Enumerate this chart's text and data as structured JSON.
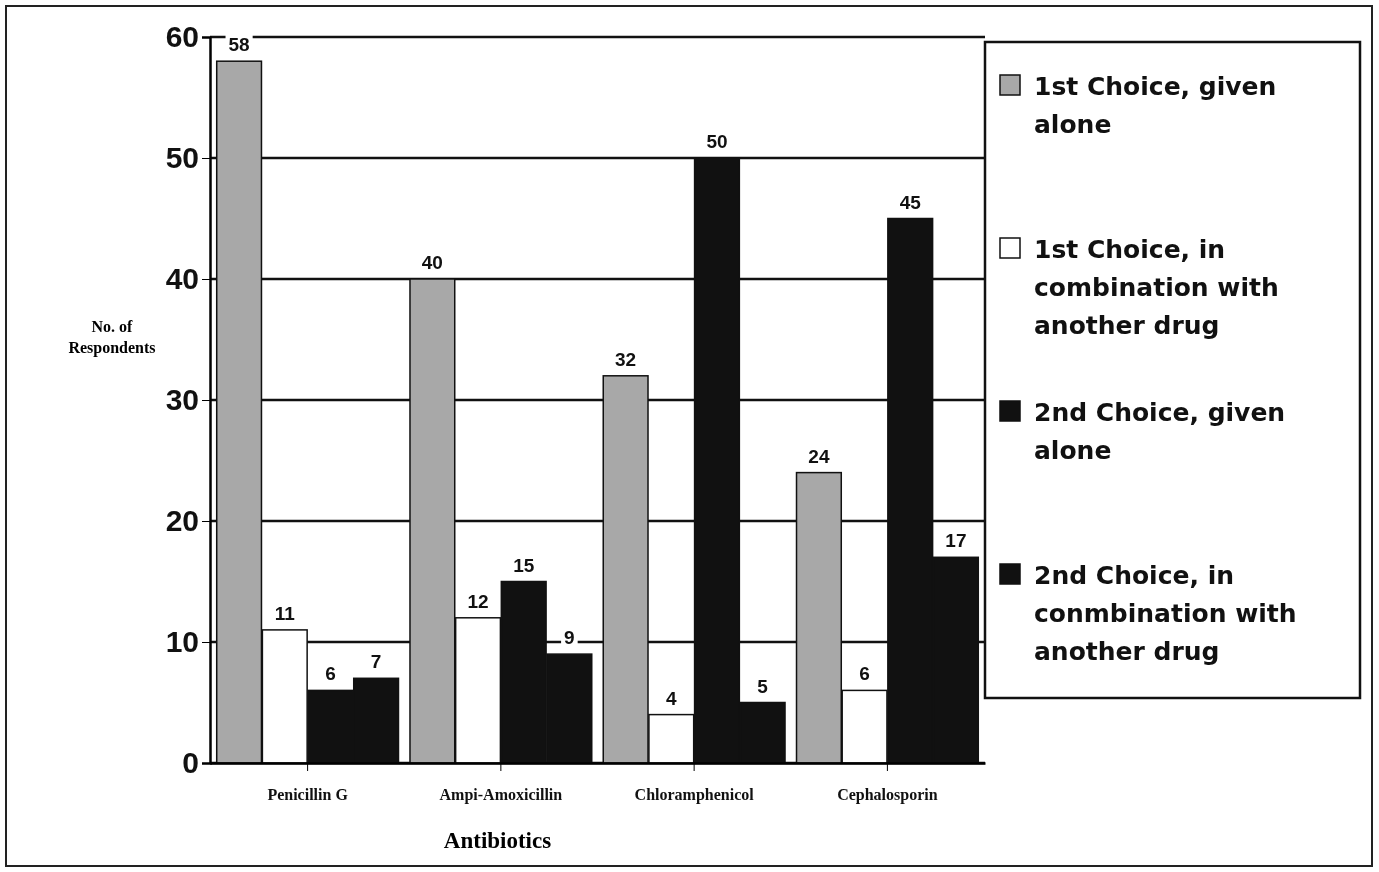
{
  "chart_data": {
    "type": "bar",
    "xlabel": "Antibiotics",
    "ylabel": "No. of Respondents",
    "categories": [
      "Penicillin G",
      "Ampi-Amoxicillin",
      "Chloramphenicol",
      "Cephalosporin"
    ],
    "series": [
      {
        "name": "1st Choice, given alone",
        "color": "#a8a8a8",
        "values": [
          58,
          40,
          32,
          24
        ]
      },
      {
        "name": "1st Choice, in combination with another drug",
        "color": "#ffffff",
        "values": [
          11,
          12,
          4,
          6
        ]
      },
      {
        "name": "2nd Choice, given alone",
        "color": "#111111",
        "values": [
          6,
          15,
          50,
          45
        ]
      },
      {
        "name": "2nd Choice, in conmbination with another drug",
        "color": "#111111",
        "values": [
          7,
          9,
          5,
          17
        ]
      }
    ],
    "ylim": [
      0,
      60
    ],
    "yticks": [
      0,
      10,
      20,
      30,
      40,
      50,
      60
    ],
    "grid": "y",
    "legend": "right",
    "data_labels": true
  }
}
